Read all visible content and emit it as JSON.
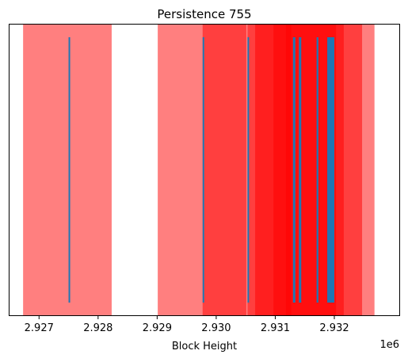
{
  "chart_data": {
    "type": "bar",
    "title": "Persistence 755",
    "xlabel": "Block Height",
    "ylabel": "",
    "x_offset_label": "1e6",
    "xlim": [
      2926500,
      2933100
    ],
    "x_ticks": [
      2927000,
      2928000,
      2929000,
      2930000,
      2931000,
      2932000
    ],
    "x_tick_labels": [
      "2.927",
      "2.928",
      "2.929",
      "2.930",
      "2.931",
      "2.932"
    ],
    "y_ticks": [],
    "grid": false,
    "legend": "none",
    "colors": {
      "band": "#ff0000",
      "event": "#1f77b4",
      "axes": "#000000",
      "background": "#ffffff"
    },
    "band_opacity": 0.5,
    "bands": [
      {
        "start": 2926730,
        "end": 2928230
      },
      {
        "start": 2929010,
        "end": 2930510
      },
      {
        "start": 2929770,
        "end": 2931270
      },
      {
        "start": 2930530,
        "end": 2932030
      },
      {
        "start": 2930660,
        "end": 2932160
      },
      {
        "start": 2930970,
        "end": 2932470
      },
      {
        "start": 2931180,
        "end": 2932680
      }
    ],
    "events": [
      {
        "x": 2927500,
        "width": 15
      },
      {
        "x": 2929770,
        "width": 15
      },
      {
        "x": 2930530,
        "width": 15
      },
      {
        "x": 2931300,
        "width": 40
      },
      {
        "x": 2931400,
        "width": 40
      },
      {
        "x": 2931700,
        "width": 30
      },
      {
        "x": 2931880,
        "width": 120
      }
    ]
  }
}
